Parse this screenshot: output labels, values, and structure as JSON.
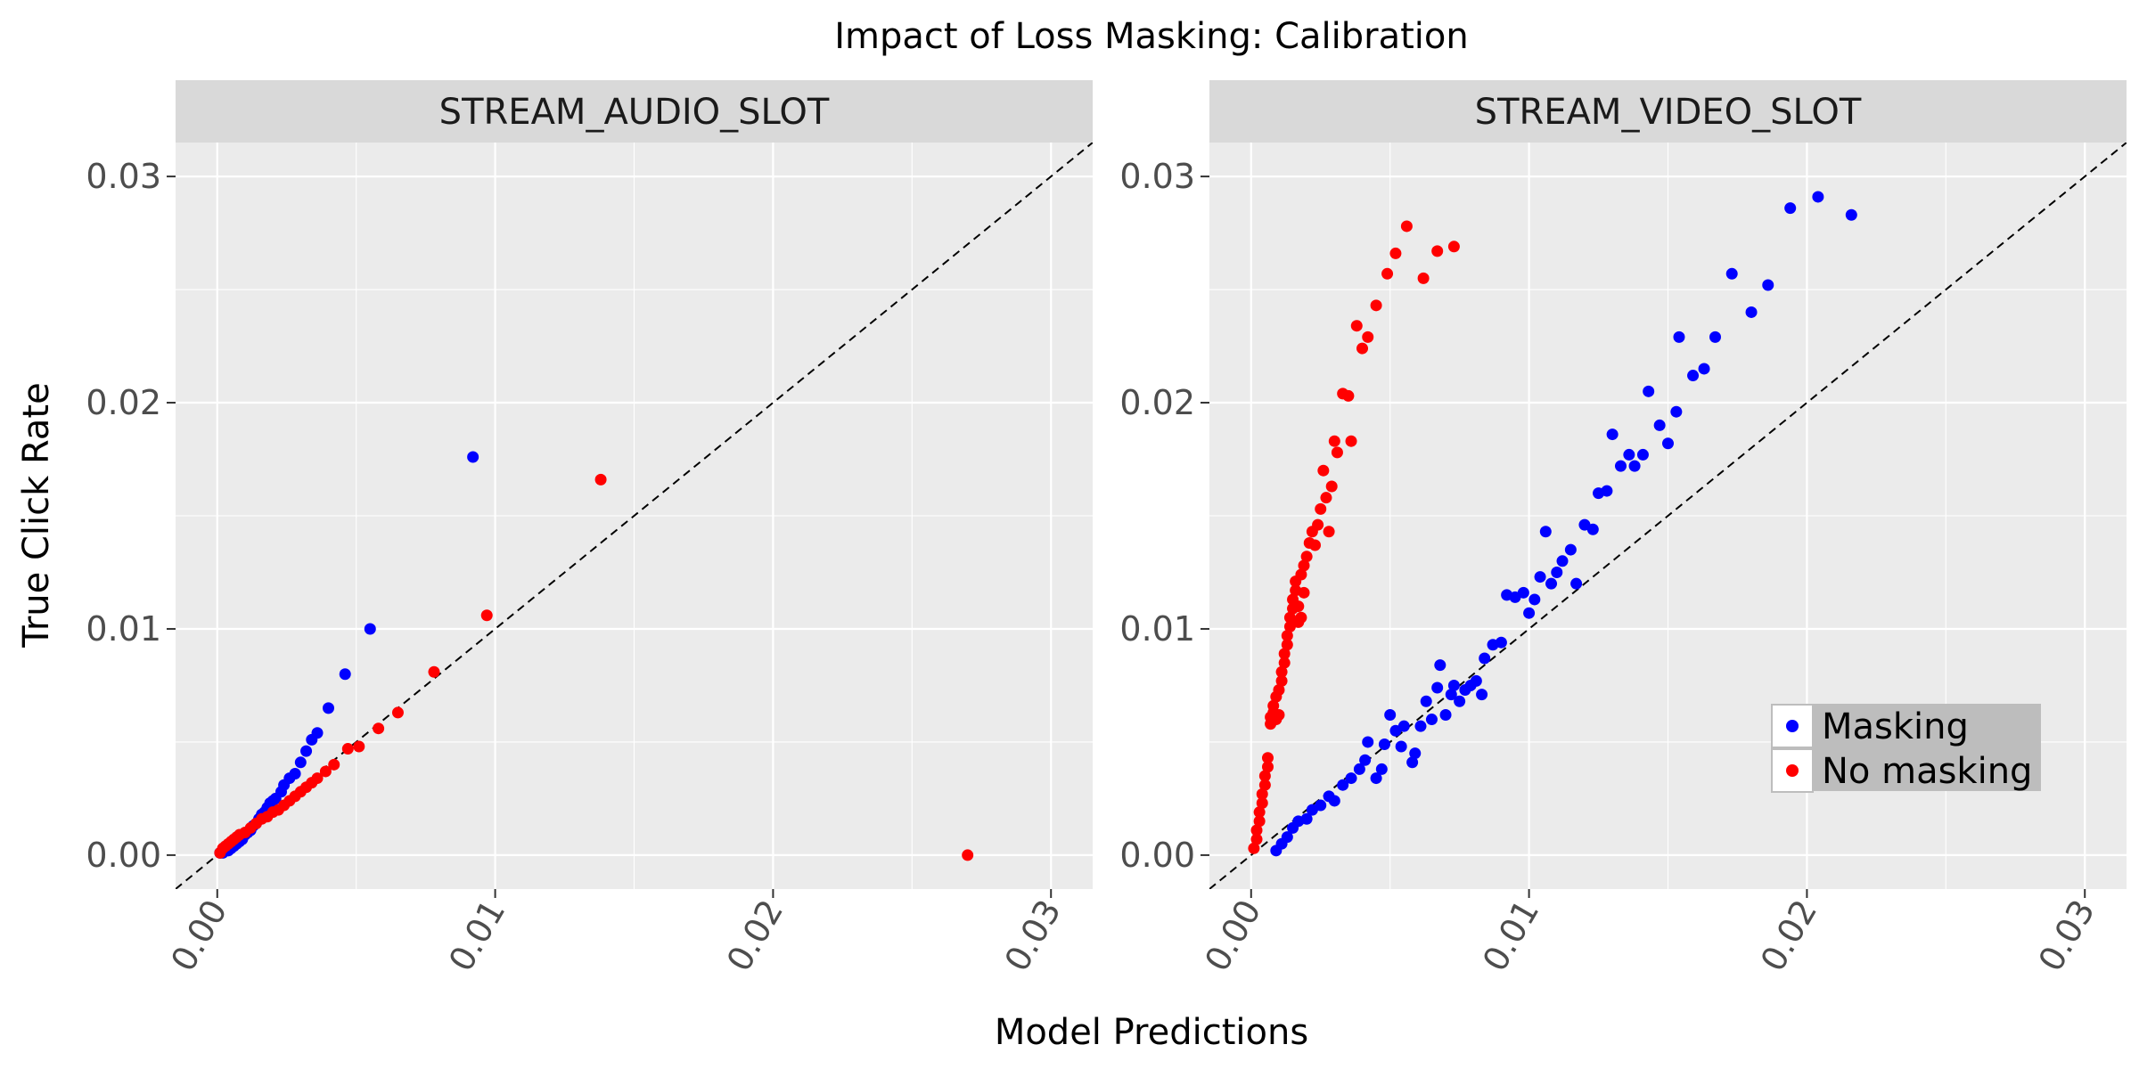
{
  "chart_data": {
    "type": "scatter",
    "title": "Impact of Loss Masking: Calibration",
    "xlabel": "Model Predictions",
    "ylabel": "True Click Rate",
    "xlim": [
      -0.0015,
      0.0315
    ],
    "ylim": [
      -0.0015,
      0.0315
    ],
    "x_ticks": [
      0.0,
      0.01,
      0.02,
      0.03
    ],
    "y_ticks": [
      0.0,
      0.01,
      0.02,
      0.03
    ],
    "tick_labels": [
      "0.00",
      "0.01",
      "0.02",
      "0.03"
    ],
    "grid": true,
    "reference_line": "y = x",
    "legend": {
      "placement": "bottom-right",
      "entries": [
        {
          "name": "Masking",
          "color": "#0000ff"
        },
        {
          "name": "No masking",
          "color": "#ff0000"
        }
      ]
    },
    "facets": [
      {
        "name": "STREAM_AUDIO_SLOT",
        "series": [
          {
            "name": "Masking",
            "color": "#0000ff",
            "points": [
              [
                0.0001,
                0.0001
              ],
              [
                0.0002,
                0.0001
              ],
              [
                0.0003,
                0.0002
              ],
              [
                0.0004,
                0.0002
              ],
              [
                0.0005,
                0.0003
              ],
              [
                0.0006,
                0.0004
              ],
              [
                0.0007,
                0.0005
              ],
              [
                0.0008,
                0.0006
              ],
              [
                0.0009,
                0.0007
              ],
              [
                0.001,
                0.0009
              ],
              [
                0.0011,
                0.001
              ],
              [
                0.0012,
                0.0011
              ],
              [
                0.0013,
                0.0013
              ],
              [
                0.0014,
                0.0014
              ],
              [
                0.0015,
                0.0016
              ],
              [
                0.0016,
                0.0018
              ],
              [
                0.0017,
                0.0019
              ],
              [
                0.0018,
                0.0021
              ],
              [
                0.0019,
                0.0023
              ],
              [
                0.002,
                0.0024
              ],
              [
                0.0021,
                0.0025
              ],
              [
                0.0023,
                0.0028
              ],
              [
                0.0024,
                0.0031
              ],
              [
                0.0026,
                0.0034
              ],
              [
                0.0028,
                0.0036
              ],
              [
                0.003,
                0.0041
              ],
              [
                0.0032,
                0.0046
              ],
              [
                0.0034,
                0.0051
              ],
              [
                0.0036,
                0.0054
              ],
              [
                0.004,
                0.0065
              ],
              [
                0.0046,
                0.008
              ],
              [
                0.0055,
                0.01
              ],
              [
                0.0092,
                0.0176
              ]
            ]
          },
          {
            "name": "No masking",
            "color": "#ff0000",
            "points": [
              [
                0.0001,
                0.0001
              ],
              [
                0.0002,
                0.0003
              ],
              [
                0.0003,
                0.0004
              ],
              [
                0.0004,
                0.0005
              ],
              [
                0.0005,
                0.0006
              ],
              [
                0.0006,
                0.0007
              ],
              [
                0.0007,
                0.0008
              ],
              [
                0.0008,
                0.0009
              ],
              [
                0.001,
                0.001
              ],
              [
                0.0012,
                0.0012
              ],
              [
                0.0014,
                0.0014
              ],
              [
                0.0016,
                0.0016
              ],
              [
                0.0018,
                0.0017
              ],
              [
                0.002,
                0.0019
              ],
              [
                0.0022,
                0.002
              ],
              [
                0.0024,
                0.0022
              ],
              [
                0.0026,
                0.0024
              ],
              [
                0.0028,
                0.0026
              ],
              [
                0.003,
                0.0028
              ],
              [
                0.0032,
                0.003
              ],
              [
                0.0034,
                0.0032
              ],
              [
                0.0036,
                0.0034
              ],
              [
                0.0039,
                0.0037
              ],
              [
                0.0042,
                0.004
              ],
              [
                0.0047,
                0.0047
              ],
              [
                0.0051,
                0.0048
              ],
              [
                0.0058,
                0.0056
              ],
              [
                0.0065,
                0.0063
              ],
              [
                0.0078,
                0.0081
              ],
              [
                0.0097,
                0.0106
              ],
              [
                0.0138,
                0.0166
              ],
              [
                0.027,
                0.0
              ]
            ]
          }
        ]
      },
      {
        "name": "STREAM_VIDEO_SLOT",
        "series": [
          {
            "name": "Masking",
            "color": "#0000ff",
            "points": [
              [
                0.0009,
                0.0002
              ],
              [
                0.0011,
                0.0005
              ],
              [
                0.0013,
                0.0008
              ],
              [
                0.0015,
                0.0012
              ],
              [
                0.0017,
                0.0015
              ],
              [
                0.002,
                0.0016
              ],
              [
                0.0022,
                0.002
              ],
              [
                0.0025,
                0.0022
              ],
              [
                0.0028,
                0.0026
              ],
              [
                0.003,
                0.0024
              ],
              [
                0.0033,
                0.0031
              ],
              [
                0.0036,
                0.0034
              ],
              [
                0.0039,
                0.0038
              ],
              [
                0.0041,
                0.0042
              ],
              [
                0.0042,
                0.005
              ],
              [
                0.0045,
                0.0034
              ],
              [
                0.0047,
                0.0038
              ],
              [
                0.0048,
                0.0049
              ],
              [
                0.005,
                0.0062
              ],
              [
                0.0052,
                0.0055
              ],
              [
                0.0054,
                0.0048
              ],
              [
                0.0055,
                0.0057
              ],
              [
                0.0058,
                0.0041
              ],
              [
                0.0059,
                0.0045
              ],
              [
                0.0061,
                0.0057
              ],
              [
                0.0063,
                0.0068
              ],
              [
                0.0065,
                0.006
              ],
              [
                0.0067,
                0.0074
              ],
              [
                0.0068,
                0.0084
              ],
              [
                0.007,
                0.0062
              ],
              [
                0.0072,
                0.0071
              ],
              [
                0.0073,
                0.0075
              ],
              [
                0.0075,
                0.0068
              ],
              [
                0.0077,
                0.0073
              ],
              [
                0.0079,
                0.0075
              ],
              [
                0.0081,
                0.0077
              ],
              [
                0.0083,
                0.0071
              ],
              [
                0.0084,
                0.0087
              ],
              [
                0.0087,
                0.0093
              ],
              [
                0.009,
                0.0094
              ],
              [
                0.0092,
                0.0115
              ],
              [
                0.0095,
                0.0114
              ],
              [
                0.0098,
                0.0116
              ],
              [
                0.01,
                0.0107
              ],
              [
                0.0102,
                0.0113
              ],
              [
                0.0104,
                0.0123
              ],
              [
                0.0106,
                0.0143
              ],
              [
                0.0108,
                0.012
              ],
              [
                0.011,
                0.0125
              ],
              [
                0.0112,
                0.013
              ],
              [
                0.0115,
                0.0135
              ],
              [
                0.0117,
                0.012
              ],
              [
                0.012,
                0.0146
              ],
              [
                0.0123,
                0.0144
              ],
              [
                0.0125,
                0.016
              ],
              [
                0.0128,
                0.0161
              ],
              [
                0.013,
                0.0186
              ],
              [
                0.0133,
                0.0172
              ],
              [
                0.0136,
                0.0177
              ],
              [
                0.0138,
                0.0172
              ],
              [
                0.0141,
                0.0177
              ],
              [
                0.0143,
                0.0205
              ],
              [
                0.0147,
                0.019
              ],
              [
                0.015,
                0.0182
              ],
              [
                0.0153,
                0.0196
              ],
              [
                0.0154,
                0.0229
              ],
              [
                0.0159,
                0.0212
              ],
              [
                0.0163,
                0.0215
              ],
              [
                0.0167,
                0.0229
              ],
              [
                0.0173,
                0.0257
              ],
              [
                0.018,
                0.024
              ],
              [
                0.0186,
                0.0252
              ],
              [
                0.0194,
                0.0286
              ],
              [
                0.0204,
                0.0291
              ],
              [
                0.0216,
                0.0283
              ]
            ]
          },
          {
            "name": "No masking",
            "color": "#ff0000",
            "points": [
              [
                0.0001,
                0.0003
              ],
              [
                0.0002,
                0.0007
              ],
              [
                0.0002,
                0.0011
              ],
              [
                0.0003,
                0.0015
              ],
              [
                0.0003,
                0.0019
              ],
              [
                0.0004,
                0.0023
              ],
              [
                0.0004,
                0.0027
              ],
              [
                0.0005,
                0.0031
              ],
              [
                0.0005,
                0.0035
              ],
              [
                0.0006,
                0.0039
              ],
              [
                0.0006,
                0.0043
              ],
              [
                0.0007,
                0.0058
              ],
              [
                0.0007,
                0.0061
              ],
              [
                0.0008,
                0.0063
              ],
              [
                0.0008,
                0.0066
              ],
              [
                0.0009,
                0.006
              ],
              [
                0.0009,
                0.007
              ],
              [
                0.001,
                0.0062
              ],
              [
                0.001,
                0.0073
              ],
              [
                0.0011,
                0.0077
              ],
              [
                0.0011,
                0.0081
              ],
              [
                0.0012,
                0.0085
              ],
              [
                0.0012,
                0.0089
              ],
              [
                0.0013,
                0.0093
              ],
              [
                0.0013,
                0.0097
              ],
              [
                0.0014,
                0.0101
              ],
              [
                0.0014,
                0.0105
              ],
              [
                0.0015,
                0.0109
              ],
              [
                0.0015,
                0.0113
              ],
              [
                0.0016,
                0.0117
              ],
              [
                0.0016,
                0.0121
              ],
              [
                0.0017,
                0.0103
              ],
              [
                0.0017,
                0.011
              ],
              [
                0.0018,
                0.0124
              ],
              [
                0.0018,
                0.0105
              ],
              [
                0.0019,
                0.0116
              ],
              [
                0.0019,
                0.0128
              ],
              [
                0.002,
                0.0132
              ],
              [
                0.0021,
                0.0138
              ],
              [
                0.0022,
                0.0143
              ],
              [
                0.0023,
                0.0137
              ],
              [
                0.0024,
                0.0146
              ],
              [
                0.0025,
                0.0153
              ],
              [
                0.0026,
                0.017
              ],
              [
                0.0027,
                0.0158
              ],
              [
                0.0028,
                0.0143
              ],
              [
                0.0029,
                0.0163
              ],
              [
                0.003,
                0.0183
              ],
              [
                0.0031,
                0.0178
              ],
              [
                0.0033,
                0.0204
              ],
              [
                0.0035,
                0.0203
              ],
              [
                0.0036,
                0.0183
              ],
              [
                0.0038,
                0.0234
              ],
              [
                0.004,
                0.0224
              ],
              [
                0.0042,
                0.0229
              ],
              [
                0.0045,
                0.0243
              ],
              [
                0.0049,
                0.0257
              ],
              [
                0.0052,
                0.0266
              ],
              [
                0.0056,
                0.0278
              ],
              [
                0.0062,
                0.0255
              ],
              [
                0.0067,
                0.0267
              ],
              [
                0.0073,
                0.0269
              ]
            ]
          }
        ]
      }
    ]
  }
}
